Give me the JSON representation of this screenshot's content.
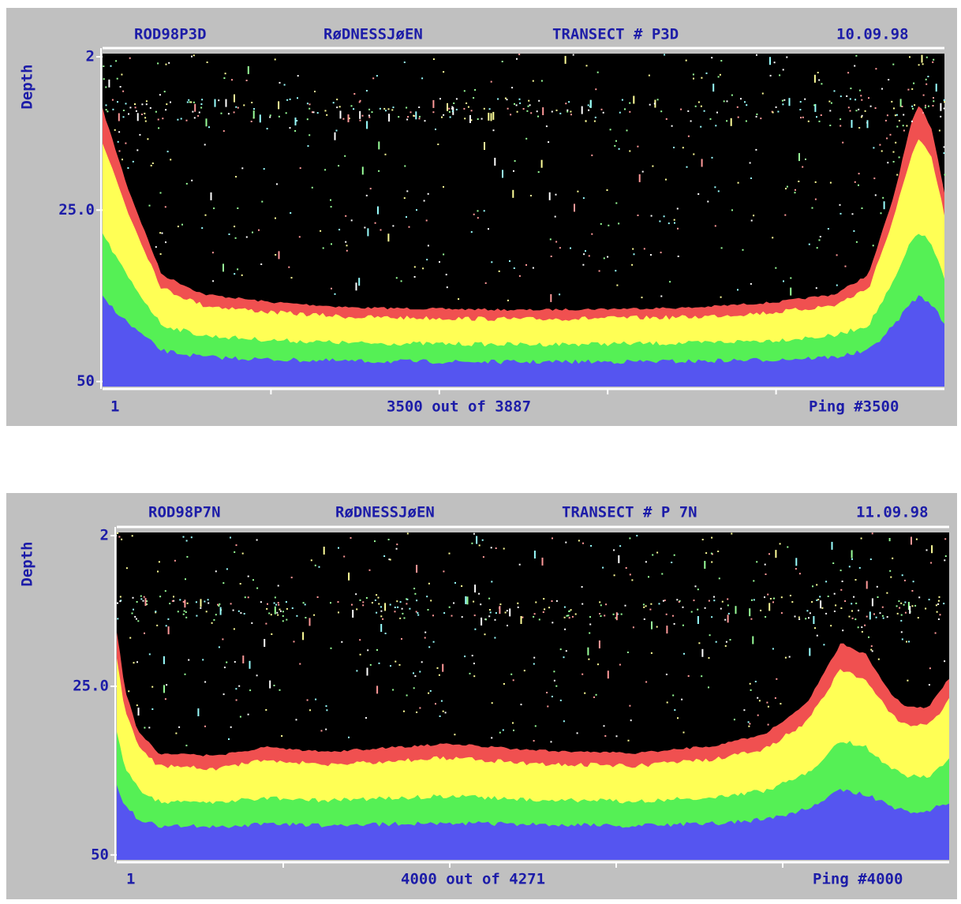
{
  "panels": [
    {
      "file": "ROD98P3D",
      "lake": "RøDNESSJøEN",
      "transect": "TRANSECT # P3D",
      "date": "10.09.98",
      "axis_label": "Depth",
      "depth_ticks": [
        "2",
        "25.0",
        "50"
      ],
      "start": "1",
      "position": "3500 out of 3887",
      "ping": "Ping #3500"
    },
    {
      "file": "ROD98P7N",
      "lake": "RøDNESSJøEN",
      "transect": "TRANSECT # P 7N",
      "date": "11.09.98",
      "axis_label": "Depth",
      "depth_ticks": [
        "2",
        "25.0",
        "50"
      ],
      "start": "1",
      "position": "4000 out of 4271",
      "ping": "Ping #4000"
    }
  ]
}
